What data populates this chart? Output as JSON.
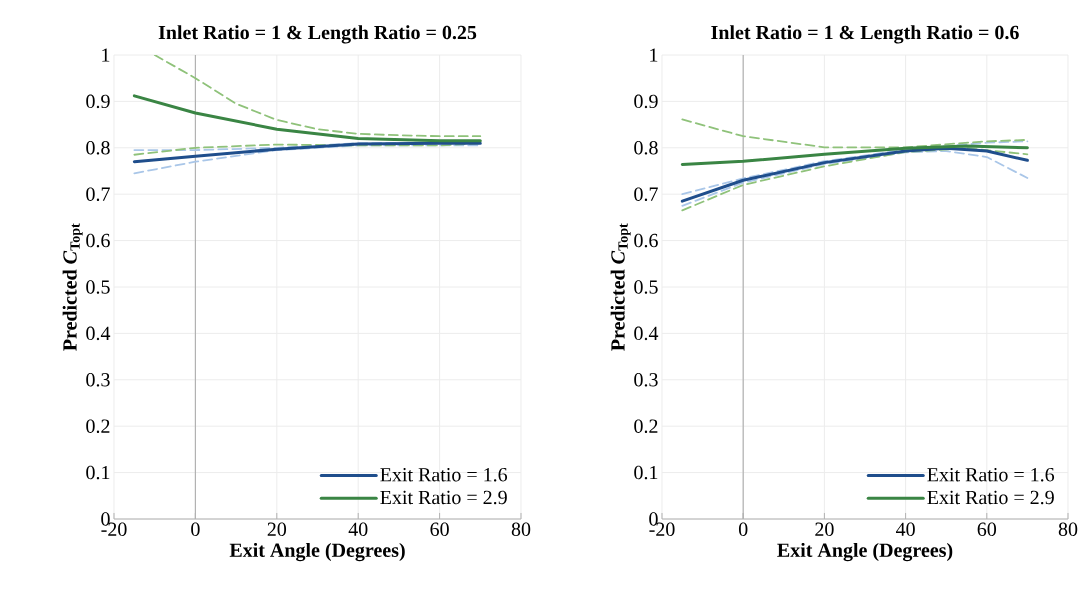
{
  "chart_data": [
    {
      "type": "line",
      "title": "Inlet Ratio = 1 & Length Ratio = 0.25",
      "xlabel": "Exit Angle (Degrees)",
      "ylabel": "Predicted *C*$_{Topt}$",
      "xlim": [
        -20,
        80
      ],
      "ylim": [
        0,
        1
      ],
      "xticks": [
        -20,
        0,
        20,
        40,
        60,
        80
      ],
      "yticks": [
        0,
        0.1,
        0.2,
        0.3,
        0.4,
        0.5,
        0.6,
        0.7,
        0.8,
        0.9,
        1
      ],
      "grid": true,
      "legend": "bottom right",
      "series": [
        {
          "color": "#a9c6e8",
          "line_style": "dashed",
          "x": [
            -15,
            0,
            20,
            40,
            70
          ],
          "values": [
            0.795,
            0.795,
            0.8,
            0.81,
            0.812
          ]
        },
        {
          "color": "#a9c6e8",
          "line_style": "dashed",
          "x": [
            -15,
            0,
            20,
            40,
            70
          ],
          "values": [
            0.745,
            0.77,
            0.795,
            0.805,
            0.805
          ]
        },
        {
          "color": "#8fc27a",
          "line_style": "dashed",
          "x": [
            -10,
            0,
            10,
            20,
            30,
            40,
            50,
            60,
            70
          ],
          "values": [
            1.0,
            0.95,
            0.895,
            0.86,
            0.84,
            0.83,
            0.827,
            0.825,
            0.825
          ]
        },
        {
          "color": "#8fc27a",
          "line_style": "dashed",
          "x": [
            -15,
            0,
            20,
            40,
            60,
            70
          ],
          "values": [
            0.785,
            0.8,
            0.807,
            0.805,
            0.805,
            0.81
          ]
        },
        {
          "name": "Exit Ratio = 1.6",
          "color": "#1f4e8c",
          "line_style": "solid",
          "x": [
            -15,
            0,
            20,
            40,
            60,
            70
          ],
          "values": [
            0.77,
            0.782,
            0.797,
            0.808,
            0.81,
            0.81
          ]
        },
        {
          "name": "Exit Ratio = 2.9",
          "color": "#3a8544",
          "line_style": "solid",
          "x": [
            -15,
            0,
            20,
            40,
            60,
            70
          ],
          "values": [
            0.912,
            0.875,
            0.84,
            0.82,
            0.815,
            0.815
          ]
        }
      ]
    },
    {
      "type": "line",
      "title": "Inlet Ratio = 1 & Length Ratio = 0.6",
      "xlabel": "Exit Angle (Degrees)",
      "ylabel": "Predicted *C*$_{Topt}$",
      "xlim": [
        -20,
        80
      ],
      "ylim": [
        0,
        1
      ],
      "xticks": [
        -20,
        0,
        20,
        40,
        60,
        80
      ],
      "yticks": [
        0,
        0.1,
        0.2,
        0.3,
        0.4,
        0.5,
        0.6,
        0.7,
        0.8,
        0.9,
        1
      ],
      "grid": true,
      "legend": "bottom right",
      "series": [
        {
          "color": "#a9c6e8",
          "line_style": "dashed",
          "x": [
            -15,
            0,
            20,
            40,
            60,
            70
          ],
          "values": [
            0.7,
            0.734,
            0.771,
            0.796,
            0.811,
            0.814
          ]
        },
        {
          "color": "#a9c6e8",
          "line_style": "dashed",
          "x": [
            -15,
            0,
            20,
            40,
            50,
            60,
            70
          ],
          "values": [
            0.675,
            0.725,
            0.765,
            0.79,
            0.793,
            0.78,
            0.735
          ]
        },
        {
          "color": "#8fc27a",
          "line_style": "dashed",
          "x": [
            -15,
            0,
            20,
            40,
            60,
            70
          ],
          "values": [
            0.861,
            0.825,
            0.801,
            0.801,
            0.814,
            0.817
          ]
        },
        {
          "color": "#8fc27a",
          "line_style": "dashed",
          "x": [
            -15,
            0,
            20,
            40,
            55,
            70
          ],
          "values": [
            0.665,
            0.72,
            0.76,
            0.791,
            0.799,
            0.786
          ]
        },
        {
          "name": "Exit Ratio = 1.6",
          "color": "#1f4e8c",
          "line_style": "solid",
          "x": [
            -15,
            0,
            20,
            40,
            50,
            60,
            70
          ],
          "values": [
            0.685,
            0.73,
            0.768,
            0.793,
            0.799,
            0.793,
            0.773
          ]
        },
        {
          "name": "Exit Ratio = 2.9",
          "color": "#3a8544",
          "line_style": "solid",
          "x": [
            -15,
            0,
            20,
            40,
            55,
            70
          ],
          "values": [
            0.764,
            0.771,
            0.786,
            0.799,
            0.804,
            0.8
          ]
        }
      ]
    }
  ]
}
